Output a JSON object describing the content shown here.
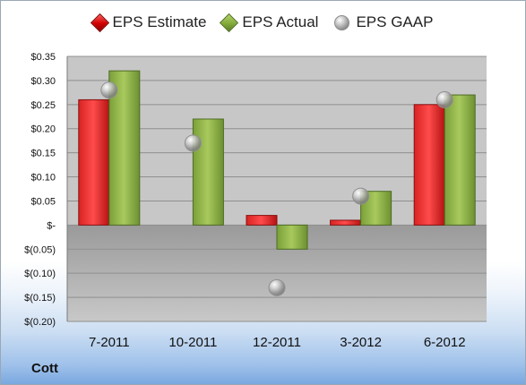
{
  "chart_data": {
    "type": "bar",
    "categories": [
      "7-2011",
      "10-2011",
      "12-2011",
      "3-2012",
      "6-2012"
    ],
    "series": [
      {
        "name": "EPS Estimate",
        "type": "bar",
        "color": "#cc1f1f",
        "values": [
          0.26,
          null,
          0.02,
          0.01,
          0.25
        ]
      },
      {
        "name": "EPS Actual",
        "type": "bar",
        "color": "#7ea63b",
        "values": [
          0.32,
          0.22,
          -0.05,
          0.07,
          0.27
        ]
      },
      {
        "name": "EPS GAAP",
        "type": "bubble",
        "color": "#9a9a9a",
        "values": [
          0.28,
          0.17,
          -0.13,
          0.06,
          0.26
        ]
      }
    ],
    "ylim": [
      -0.2,
      0.35
    ],
    "yticks": [
      0.35,
      0.3,
      0.25,
      0.2,
      0.15,
      0.1,
      0.05,
      0,
      -0.05,
      -0.1,
      -0.15,
      -0.2
    ],
    "ytick_labels": [
      "$0.35",
      "$0.30",
      "$0.25",
      "$0.20",
      "$0.15",
      "$0.10",
      "$0.05",
      "$-",
      "$(0.05)",
      "$(0.10)",
      "$(0.15)",
      "$(0.20)"
    ],
    "grid": true,
    "legend_position": "top",
    "background_colors": {
      "positive_region": "#c7c7c7",
      "negative_region": "#a9a9a9",
      "grid": "#8f8f8f"
    }
  },
  "footer": {
    "company": "Cott"
  }
}
